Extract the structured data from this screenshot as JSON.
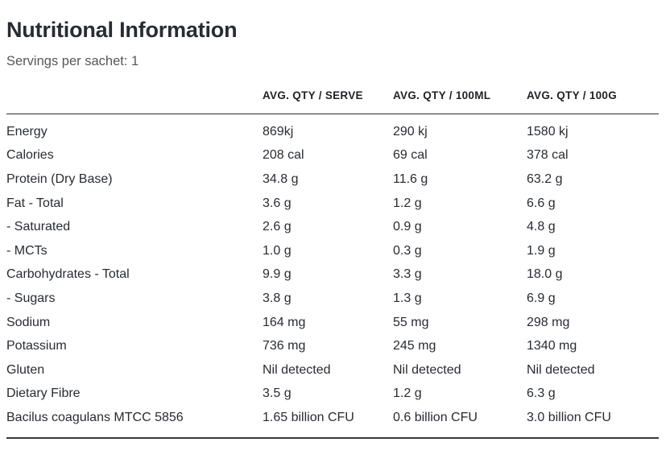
{
  "header": {
    "title": "Nutritional Information",
    "servings_line": "Servings per sachet: 1"
  },
  "table": {
    "column_headers": [
      "AVG. QTY / SERVE",
      "AVG. QTY / 100ML",
      "AVG. QTY / 100G"
    ],
    "rows": [
      {
        "label": "Energy",
        "per_serve": "869kj",
        "per_100ml": "290 kj",
        "per_100g": "1580 kj"
      },
      {
        "label": "Calories",
        "per_serve": "208 cal",
        "per_100ml": "69 cal",
        "per_100g": "378 cal"
      },
      {
        "label": "Protein (Dry Base)",
        "per_serve": "34.8 g",
        "per_100ml": "11.6 g",
        "per_100g": "63.2 g"
      },
      {
        "label": "Fat - Total",
        "per_serve": "3.6 g",
        "per_100ml": "1.2 g",
        "per_100g": "6.6 g"
      },
      {
        "label": "- Saturated",
        "per_serve": "2.6 g",
        "per_100ml": "0.9 g",
        "per_100g": "4.8 g"
      },
      {
        "label": "- MCTs",
        "per_serve": "1.0 g",
        "per_100ml": "0.3 g",
        "per_100g": "1.9 g"
      },
      {
        "label": "Carbohydrates - Total",
        "per_serve": "9.9 g",
        "per_100ml": "3.3 g",
        "per_100g": "18.0 g"
      },
      {
        "label": "- Sugars",
        "per_serve": "3.8 g",
        "per_100ml": "1.3 g",
        "per_100g": "6.9 g"
      },
      {
        "label": "Sodium",
        "per_serve": "164 mg",
        "per_100ml": "55 mg",
        "per_100g": "298 mg"
      },
      {
        "label": "Potassium",
        "per_serve": "736 mg",
        "per_100ml": "245 mg",
        "per_100g": "1340 mg"
      },
      {
        "label": "Gluten",
        "per_serve": "Nil detected",
        "per_100ml": "Nil detected",
        "per_100g": "Nil detected"
      },
      {
        "label": "Dietary Fibre",
        "per_serve": "3.5 g",
        "per_100ml": "1.2 g",
        "per_100g": "6.3 g"
      },
      {
        "label": "Bacilus coagulans MTCC 5856",
        "per_serve": "1.65 billion CFU",
        "per_100ml": "0.6 billion CFU",
        "per_100g": "3.0 billion CFU"
      }
    ]
  },
  "colors": {
    "text_primary": "#272c34",
    "text_secondary": "#54575d",
    "rule_top": "#2d2d2d",
    "rule_bottom": "#3a3a3a"
  }
}
